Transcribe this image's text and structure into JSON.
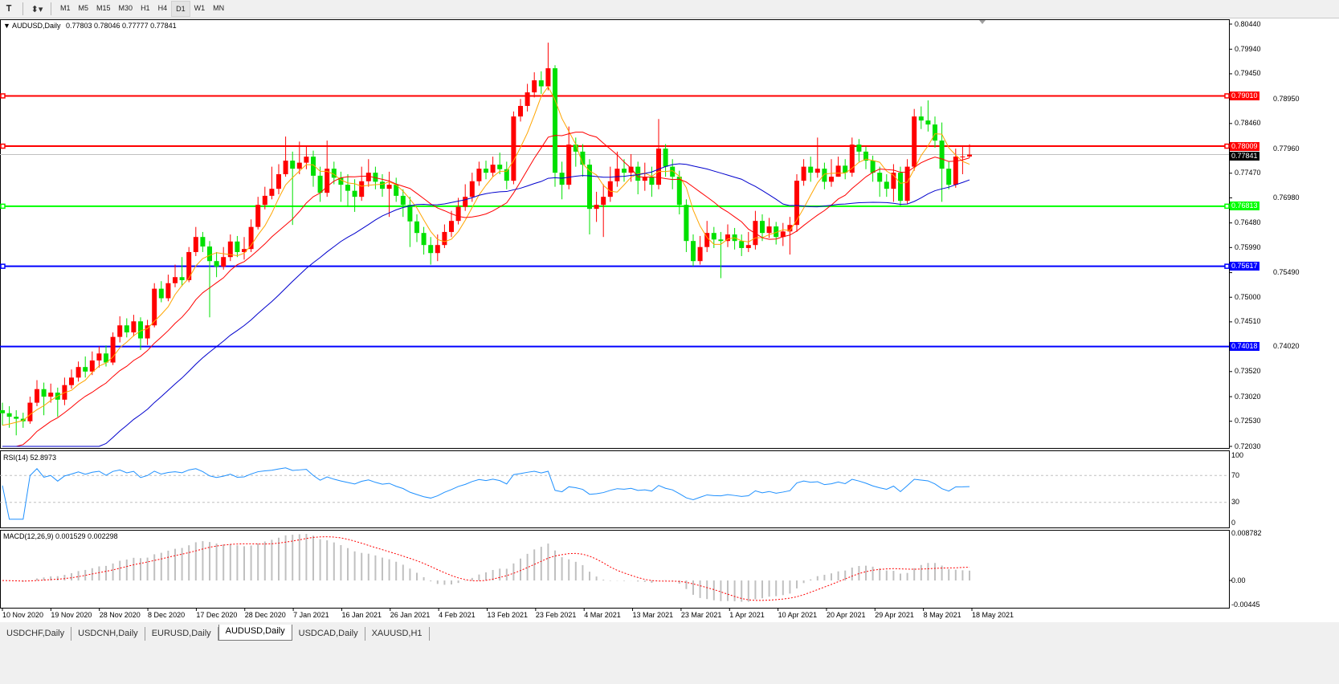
{
  "toolbar": {
    "icons": [
      "text-tool-icon",
      "shapes-dropdown-icon"
    ],
    "timeframes": [
      "M1",
      "M5",
      "M15",
      "M30",
      "H1",
      "H4",
      "D1",
      "W1",
      "MN"
    ],
    "active_timeframe": "D1"
  },
  "chart": {
    "symbol_title": "AUDUSD,Daily",
    "ohlc_text": "0.77803 0.78046 0.77777 0.77841",
    "bull_color": "#ff0000",
    "bear_color": "#00e000",
    "price_axis_ticks": [
      "0.80440",
      "0.79940",
      "0.79450",
      "0.78950",
      "0.78460",
      "0.77960",
      "0.77470",
      "0.76980",
      "0.76480",
      "0.75990",
      "0.75490",
      "0.75000",
      "0.74510",
      "0.74020",
      "0.73520",
      "0.73020",
      "0.72530",
      "0.72030"
    ],
    "bid": {
      "value": "0.77841",
      "color": "#000000"
    },
    "levels": [
      {
        "value": "0.79010",
        "color": "#ff0000"
      },
      {
        "value": "0.78009",
        "color": "#ff0000"
      },
      {
        "value": "0.76813",
        "color": "#00ff00"
      },
      {
        "value": "0.75617",
        "color": "#0000ff"
      },
      {
        "value": "0.74018",
        "color": "#0000ff"
      }
    ],
    "moving_average_colors": [
      "#ffa500",
      "#ff0000",
      "#0000cd"
    ],
    "date_labels": [
      "10 Nov 2020",
      "19 Nov 2020",
      "28 Nov 2020",
      "8 Dec 2020",
      "17 Dec 2020",
      "28 Dec 2020",
      "7 Jan 2021",
      "16 Jan 2021",
      "26 Jan 2021",
      "4 Feb 2021",
      "13 Feb 2021",
      "23 Feb 2021",
      "4 Mar 2021",
      "13 Mar 2021",
      "23 Mar 2021",
      "1 Apr 2021",
      "10 Apr 2021",
      "20 Apr 2021",
      "29 Apr 2021",
      "8 May 2021",
      "18 May 2021"
    ]
  },
  "chart_data": {
    "type": "candlestick",
    "open_first": 0.7275,
    "close": [
      0.7269,
      0.7262,
      0.7258,
      0.7253,
      0.729,
      0.7317,
      0.7302,
      0.731,
      0.7296,
      0.7325,
      0.734,
      0.7361,
      0.7352,
      0.7374,
      0.7388,
      0.737,
      0.7421,
      0.7444,
      0.743,
      0.7452,
      0.7418,
      0.7444,
      0.7517,
      0.7498,
      0.7528,
      0.754,
      0.7534,
      0.759,
      0.762,
      0.7601,
      0.7572,
      0.7561,
      0.758,
      0.7611,
      0.759,
      0.7596,
      0.764,
      0.7684,
      0.7702,
      0.7716,
      0.7745,
      0.7772,
      0.7756,
      0.7768,
      0.778,
      0.7742,
      0.7708,
      0.7756,
      0.7738,
      0.7724,
      0.7712,
      0.77,
      0.7731,
      0.7748,
      0.773,
      0.7716,
      0.7724,
      0.7702,
      0.7684,
      0.7651,
      0.7628,
      0.7604,
      0.7588,
      0.7604,
      0.763,
      0.7652,
      0.768,
      0.77,
      0.7731,
      0.7756,
      0.7748,
      0.7764,
      0.7755,
      0.7732,
      0.786,
      0.7881,
      0.7908,
      0.7932,
      0.792,
      0.7956,
      0.7748,
      0.7724,
      0.7804,
      0.779,
      0.7764,
      0.7676,
      0.7684,
      0.77,
      0.7731,
      0.7756,
      0.7748,
      0.776,
      0.7732,
      0.774,
      0.7724,
      0.7796,
      0.776,
      0.774,
      0.7684,
      0.7612,
      0.7572,
      0.76,
      0.7628,
      0.7615,
      0.7612,
      0.7625,
      0.7612,
      0.7598,
      0.7604,
      0.7652,
      0.7628,
      0.7641,
      0.762,
      0.7631,
      0.7644,
      0.7732,
      0.776,
      0.7748,
      0.7756,
      0.773,
      0.774,
      0.7762,
      0.7748,
      0.7804,
      0.779,
      0.7772,
      0.7748,
      0.773,
      0.7716,
      0.7748,
      0.7692,
      0.776,
      0.786,
      0.7852,
      0.7844,
      0.7812,
      0.7756,
      0.7724,
      0.778,
      0.77803,
      0.77841
    ],
    "high": [
      0.729,
      0.7283,
      0.7275,
      0.727,
      0.7302,
      0.7335,
      0.733,
      0.7328,
      0.732,
      0.734,
      0.7356,
      0.7372,
      0.7382,
      0.7392,
      0.7402,
      0.7404,
      0.743,
      0.7462,
      0.7458,
      0.7465,
      0.746,
      0.7455,
      0.7528,
      0.7532,
      0.7545,
      0.7565,
      0.758,
      0.76,
      0.764,
      0.763,
      0.7612,
      0.759,
      0.76,
      0.7625,
      0.7622,
      0.762,
      0.7655,
      0.77,
      0.772,
      0.776,
      0.7765,
      0.782,
      0.779,
      0.781,
      0.78,
      0.7792,
      0.776,
      0.7812,
      0.777,
      0.775,
      0.7745,
      0.7735,
      0.776,
      0.7775,
      0.776,
      0.7745,
      0.775,
      0.7738,
      0.7715,
      0.77,
      0.7665,
      0.764,
      0.762,
      0.7625,
      0.7645,
      0.7672,
      0.7698,
      0.7725,
      0.7748,
      0.777,
      0.7772,
      0.778,
      0.7788,
      0.777,
      0.787,
      0.7895,
      0.7925,
      0.7948,
      0.795,
      0.8007,
      0.7962,
      0.777,
      0.784,
      0.7818,
      0.7805,
      0.7775,
      0.771,
      0.7725,
      0.776,
      0.779,
      0.7775,
      0.7785,
      0.777,
      0.7768,
      0.776,
      0.7855,
      0.7805,
      0.7775,
      0.7752,
      0.7695,
      0.7625,
      0.7622,
      0.7652,
      0.764,
      0.763,
      0.7645,
      0.7638,
      0.7625,
      0.763,
      0.7672,
      0.7665,
      0.7658,
      0.765,
      0.7648,
      0.766,
      0.7745,
      0.7775,
      0.778,
      0.7818,
      0.7768,
      0.7775,
      0.778,
      0.7775,
      0.7818,
      0.7815,
      0.78,
      0.7782,
      0.776,
      0.7745,
      0.7765,
      0.776,
      0.7775,
      0.7875,
      0.788,
      0.7892,
      0.786,
      0.7848,
      0.777,
      0.7796,
      0.78,
      0.78046
    ],
    "low": [
      0.7245,
      0.724,
      0.7225,
      0.724,
      0.7248,
      0.7283,
      0.7265,
      0.729,
      0.7262,
      0.7285,
      0.7318,
      0.7332,
      0.734,
      0.7345,
      0.736,
      0.7362,
      0.7365,
      0.741,
      0.742,
      0.7422,
      0.7395,
      0.7405,
      0.744,
      0.749,
      0.7492,
      0.752,
      0.7522,
      0.753,
      0.7582,
      0.759,
      0.746,
      0.754,
      0.7555,
      0.7572,
      0.758,
      0.7575,
      0.759,
      0.7635,
      0.7675,
      0.7695,
      0.7705,
      0.774,
      0.7644,
      0.7745,
      0.7755,
      0.772,
      0.769,
      0.77,
      0.7725,
      0.769,
      0.768,
      0.767,
      0.7692,
      0.772,
      0.7715,
      0.77,
      0.766,
      0.769,
      0.766,
      0.76,
      0.761,
      0.7585,
      0.7565,
      0.7572,
      0.7598,
      0.762,
      0.7645,
      0.7672,
      0.769,
      0.7722,
      0.7735,
      0.774,
      0.7745,
      0.7715,
      0.7725,
      0.785,
      0.787,
      0.7898,
      0.7905,
      0.7912,
      0.772,
      0.7695,
      0.7715,
      0.776,
      0.774,
      0.7625,
      0.765,
      0.762,
      0.769,
      0.772,
      0.773,
      0.773,
      0.7705,
      0.7712,
      0.77,
      0.7715,
      0.774,
      0.7715,
      0.7665,
      0.759,
      0.7562,
      0.7565,
      0.759,
      0.7598,
      0.7538,
      0.76,
      0.7595,
      0.7582,
      0.759,
      0.7595,
      0.7612,
      0.7618,
      0.7605,
      0.7602,
      0.7585,
      0.763,
      0.7722,
      0.773,
      0.7738,
      0.7715,
      0.772,
      0.774,
      0.7735,
      0.774,
      0.777,
      0.7755,
      0.773,
      0.77,
      0.77,
      0.769,
      0.768,
      0.7685,
      0.7752,
      0.7835,
      0.783,
      0.7798,
      0.769,
      0.7715,
      0.7718,
      0.7745,
      0.77777
    ],
    "ylim": [
      0.7203,
      0.8044
    ]
  },
  "rsi": {
    "title": "RSI(14) 52.8973",
    "ticks": [
      "100",
      "70",
      "30",
      "0"
    ],
    "line_color": "#1e90ff"
  },
  "macd": {
    "title": "MACD(12,26,9) 0.001529 0.002298",
    "ticks": [
      "0.008782",
      "0.00",
      "-0.00445"
    ],
    "ylim": [
      -0.00445,
      0.008782
    ],
    "signal_color": "#ff0000",
    "histogram_color": "#c0c0c0"
  },
  "tabs": [
    {
      "label": "USDCHF,Daily"
    },
    {
      "label": "USDCNH,Daily"
    },
    {
      "label": "EURUSD,Daily"
    },
    {
      "label": "AUDUSD,Daily",
      "active": true
    },
    {
      "label": "USDCAD,Daily"
    },
    {
      "label": "XAUUSD,H1"
    }
  ]
}
